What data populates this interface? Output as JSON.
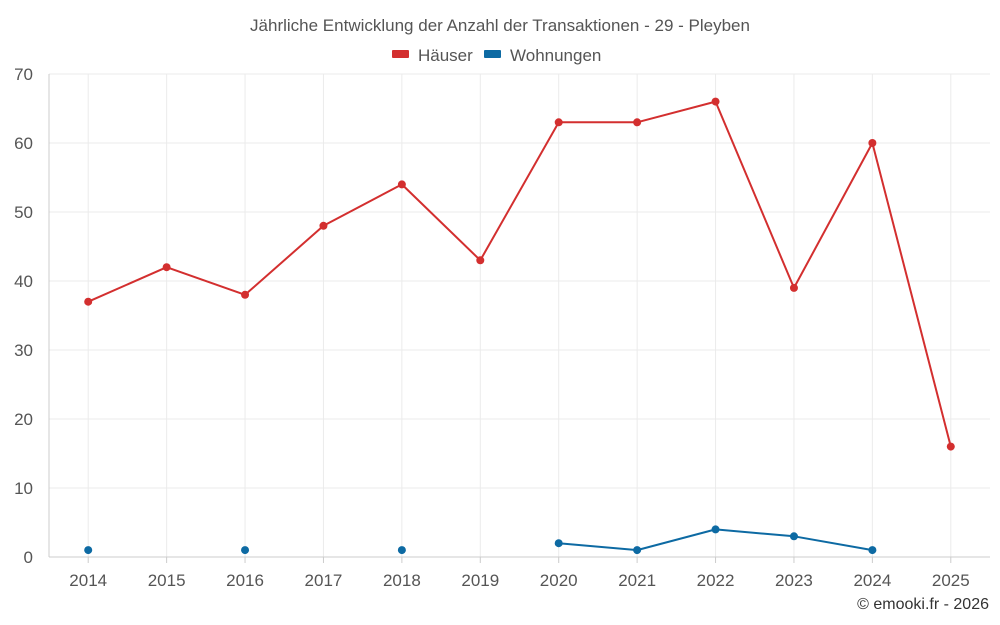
{
  "chart_data": {
    "type": "line",
    "title": "Jährliche Entwicklung der Anzahl der Transaktionen - 29 - Pleyben",
    "categories": [
      "2014",
      "2015",
      "2016",
      "2017",
      "2018",
      "2019",
      "2020",
      "2021",
      "2022",
      "2023",
      "2024",
      "2025"
    ],
    "ylim": [
      0,
      70
    ],
    "yticks": [
      0,
      10,
      20,
      30,
      40,
      50,
      60,
      70
    ],
    "grid": true,
    "legend_position": "top-center",
    "series": [
      {
        "name": "Häuser",
        "color": "#d32f2f",
        "values": [
          37,
          42,
          38,
          48,
          54,
          43,
          63,
          63,
          66,
          39,
          60,
          16
        ]
      },
      {
        "name": "Wohnungen",
        "color": "#0d6aa3",
        "values": [
          1,
          null,
          1,
          null,
          1,
          null,
          2,
          1,
          4,
          3,
          1,
          null
        ]
      }
    ]
  },
  "credit": "© emooki.fr - 2026"
}
